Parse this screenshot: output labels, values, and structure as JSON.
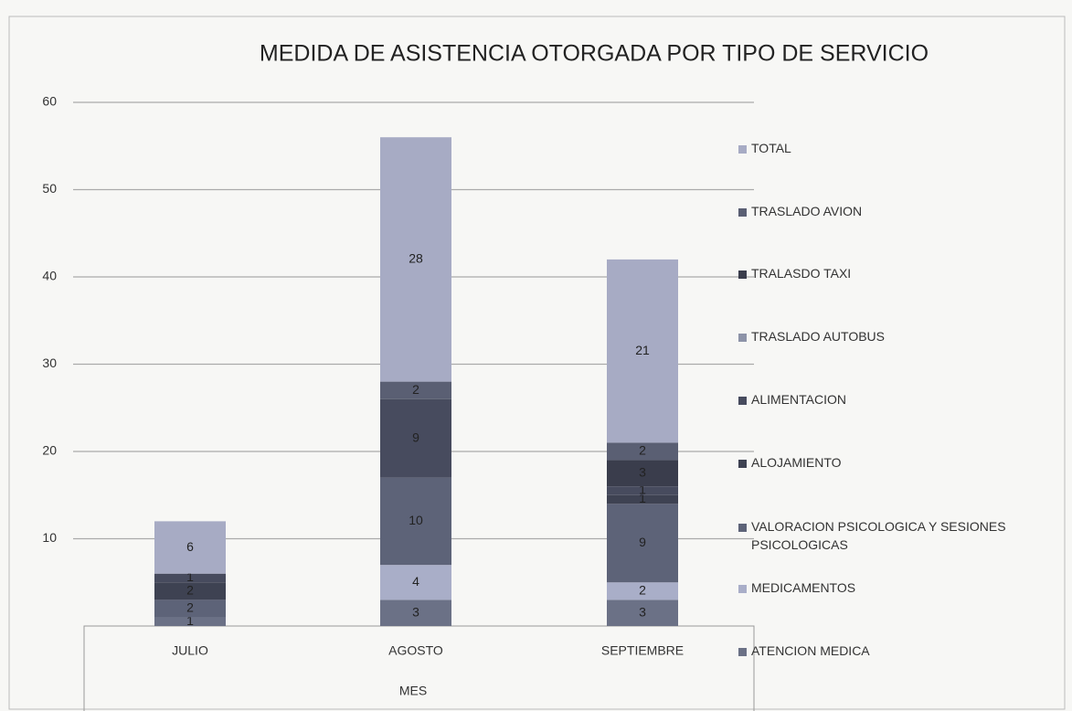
{
  "chart_data": {
    "type": "stacked_bar",
    "title": "MEDIDA DE ASISTENCIA OTORGADA POR TIPO DE SERVICIO",
    "x_label": "MES",
    "categories": [
      "JULIO",
      "AGOSTO",
      "SEPTIEMBRE"
    ],
    "series": [
      {
        "name": "ATENCION MEDICA",
        "color": "#6b7186",
        "values": [
          1,
          3,
          3
        ]
      },
      {
        "name": "MEDICAMENTOS",
        "color": "#a9aec8",
        "values": [
          0,
          4,
          2
        ]
      },
      {
        "name": "VALORACION PSICOLOGICA Y SESIONES PSICOLOGICAS",
        "color": "#5d6378",
        "values": [
          2,
          10,
          9
        ]
      },
      {
        "name": "ALOJAMIENTO",
        "color": "#3e4252",
        "values": [
          2,
          0,
          1
        ]
      },
      {
        "name": "ALIMENTACION",
        "color": "#474b5e",
        "values": [
          1,
          9,
          1
        ]
      },
      {
        "name": "TRASLADO AUTOBUS",
        "color": "#8d93a8",
        "values": [
          0,
          0,
          0
        ]
      },
      {
        "name": "TRALASDO TAXI",
        "color": "#3a3d4c",
        "values": [
          0,
          0,
          3
        ]
      },
      {
        "name": "TRASLADO AVION",
        "color": "#5a5f73",
        "values": [
          0,
          2,
          2
        ]
      },
      {
        "name": "TOTAL",
        "color": "#a7abc4",
        "values": [
          6,
          28,
          21
        ]
      }
    ],
    "ylim": [
      0,
      60
    ],
    "yticks": [
      10,
      20,
      30,
      40,
      50,
      60
    ],
    "grid": true
  }
}
